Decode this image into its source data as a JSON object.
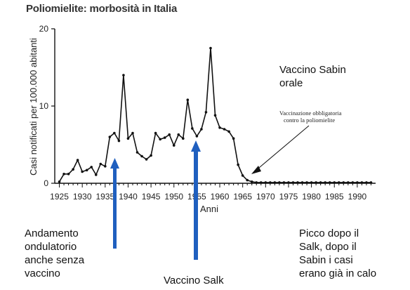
{
  "chart_data": {
    "type": "line",
    "title": "Poliomielite: morbosità in Italia",
    "xlabel": "Anni",
    "ylabel": "Casi notificati per 100.000 abitanti",
    "xlim": [
      1924,
      1994
    ],
    "ylim": [
      0,
      20
    ],
    "x_ticks": [
      "1925",
      "1930",
      "1935",
      "1940",
      "1945",
      "1950",
      "1955",
      "1960",
      "1965",
      "1970",
      "1975",
      "1980",
      "1985",
      "1990"
    ],
    "y_ticks": [
      "0",
      "10",
      "20"
    ],
    "series": [
      {
        "x": [
          1925,
          1926,
          1927,
          1928,
          1929,
          1930,
          1931,
          1932,
          1933,
          1934,
          1935,
          1936,
          1937,
          1938,
          1939,
          1940,
          1941,
          1942,
          1943,
          1944,
          1945,
          1946,
          1947,
          1948,
          1949,
          1950,
          1951,
          1952,
          1953,
          1954,
          1955,
          1956,
          1957,
          1958,
          1959,
          1960,
          1961,
          1962,
          1963,
          1964,
          1965,
          1966,
          1967,
          1968,
          1969,
          1970,
          1971,
          1972,
          1973,
          1974,
          1975,
          1976,
          1977,
          1978,
          1979,
          1980,
          1981,
          1982,
          1983,
          1984,
          1985,
          1986,
          1987,
          1988,
          1989,
          1990,
          1991,
          1992,
          1993
        ],
        "y": [
          0.2,
          1.2,
          1.2,
          1.8,
          3.0,
          1.5,
          1.7,
          2.1,
          1.1,
          2.5,
          2.2,
          6.0,
          6.5,
          5.5,
          14.0,
          5.8,
          6.5,
          4.0,
          3.5,
          3.1,
          3.6,
          6.5,
          5.7,
          5.9,
          6.3,
          4.9,
          6.3,
          5.8,
          10.8,
          7.1,
          6.1,
          7.0,
          9.2,
          17.5,
          8.8,
          7.2,
          7.0,
          6.7,
          5.8,
          2.4,
          1.0,
          0.4,
          0.2,
          0.1,
          0.1,
          0.1,
          0.1,
          0.1,
          0.1,
          0.1,
          0.1,
          0.1,
          0.1,
          0.1,
          0.1,
          0.1,
          0.1,
          0.1,
          0.1,
          0.1,
          0.1,
          0.1,
          0.1,
          0.1,
          0.1,
          0.1,
          0.1,
          0.1,
          0.1
        ]
      }
    ],
    "annotation_arrow_label": "Vaccinazione obbligatoria contro la poliomielite",
    "annotation_arrow_line1": "Vaccinazione obbligatoria",
    "annotation_arrow_line2": "contro la poliomielite",
    "arrow_color": "#1f5fbf"
  },
  "notes": {
    "sabin_line1": "Vaccino Sabin",
    "sabin_line2": "orale",
    "salk": "Vaccino Salk",
    "left_line1": "Andamento",
    "left_line2": "ondulatorio",
    "left_line3": "anche senza",
    "left_line4": "vaccino",
    "right_line1": "Picco dopo il",
    "right_line2": "Salk, dopo il",
    "right_line3": "Sabin i casi",
    "right_line4": "erano già in calo"
  }
}
